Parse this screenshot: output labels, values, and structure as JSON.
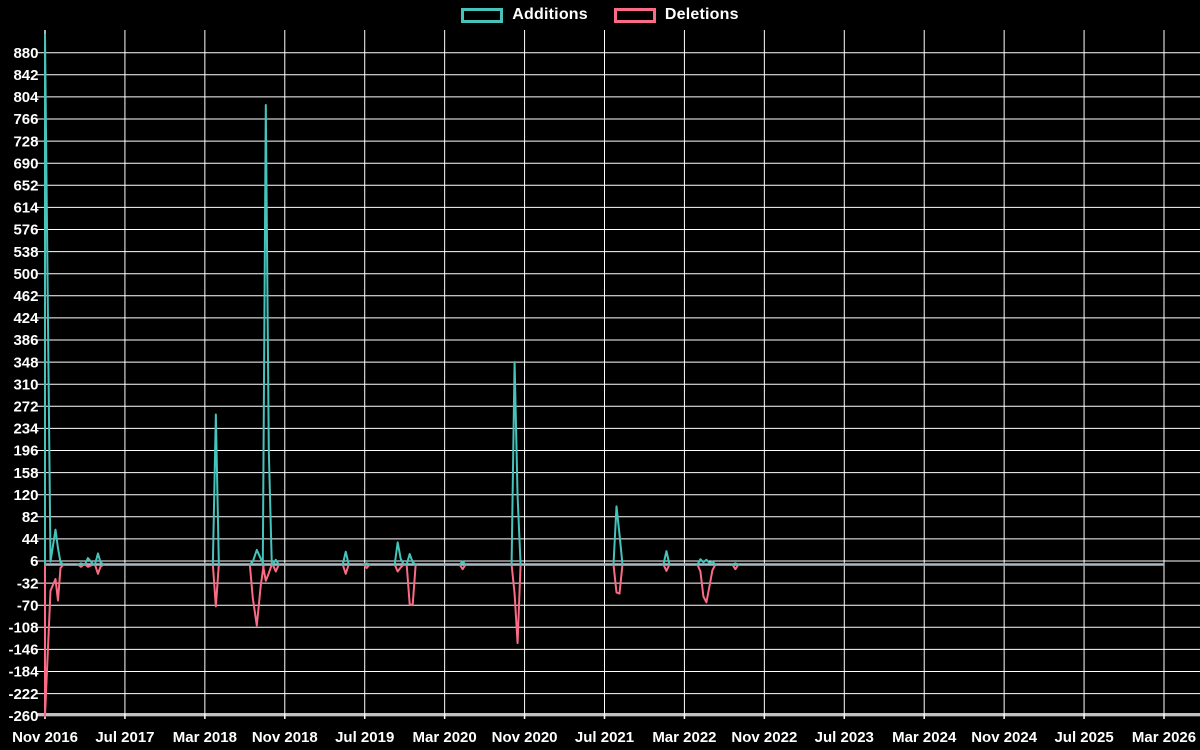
{
  "colors": {
    "background": "#000000",
    "grid": "#ffffff",
    "axis": "#ffffff",
    "text": "#ffffff",
    "additions": "#46c4bc",
    "deletions": "#fa6b85",
    "zero_line": "#a9bac5"
  },
  "chart_data": {
    "type": "line",
    "title": "",
    "legend": [
      "Additions",
      "Deletions"
    ],
    "x_tick_labels": [
      "Nov 2016",
      "Jul 2017",
      "Mar 2018",
      "Nov 2018",
      "Jul 2019",
      "Mar 2020",
      "Nov 2020",
      "Jul 2021",
      "Mar 2022",
      "Nov 2022",
      "Jul 2023",
      "Mar 2024",
      "Nov 2024",
      "Jul 2025",
      "Mar 2026"
    ],
    "months_per_x_tick": 8,
    "x_total_months": 112,
    "y_ticks": [
      880,
      842,
      804,
      766,
      728,
      690,
      652,
      614,
      576,
      538,
      500,
      462,
      424,
      386,
      348,
      310,
      272,
      234,
      196,
      158,
      120,
      82,
      44,
      6,
      -32,
      -70,
      -108,
      -146,
      -184,
      -222,
      -260
    ],
    "y_step": 38,
    "ylim": [
      -260,
      880
    ],
    "baseline_value": 0,
    "grid": true,
    "legend_position": "top-center",
    "point_format": "[months_since_Nov_2016, additions, deletions]",
    "note": "weekly additions/deletions; values estimated from plot; first week clipped beyond axis range; line flat at 0 elsewhere through Mar 2026",
    "clusters": [
      {
        "label": "2016-11",
        "points": [
          [
            0,
            950,
            -310
          ],
          [
            0.55,
            5,
            -45
          ],
          [
            1.05,
            60,
            -25
          ],
          [
            1.3,
            28,
            -62
          ],
          [
            1.55,
            4,
            -6
          ]
        ]
      },
      {
        "label": "2017-02",
        "points": [
          [
            3.6,
            2,
            -4
          ]
        ]
      },
      {
        "label": "2017-03",
        "points": [
          [
            4.3,
            11,
            -4
          ],
          [
            4.55,
            6,
            -2
          ]
        ]
      },
      {
        "label": "2017-04",
        "points": [
          [
            5.3,
            19,
            -16
          ],
          [
            5.55,
            4,
            -4
          ]
        ]
      },
      {
        "label": "2018-04",
        "points": [
          [
            17.1,
            258,
            -72
          ]
        ]
      },
      {
        "label": "2018-08",
        "points": [
          [
            20.8,
            5,
            -58
          ],
          [
            21.2,
            25,
            -105
          ],
          [
            21.6,
            10,
            -35
          ]
        ]
      },
      {
        "label": "2018-09",
        "points": [
          [
            22.1,
            790,
            -28
          ],
          [
            22.4,
            195,
            -15
          ]
        ]
      },
      {
        "label": "2018-10",
        "points": [
          [
            23.1,
            8,
            -12
          ]
        ]
      },
      {
        "label": "2019-05",
        "points": [
          [
            30.1,
            22,
            -16
          ]
        ]
      },
      {
        "label": "2019-07",
        "points": [
          [
            32.2,
            2,
            -6
          ]
        ]
      },
      {
        "label": "2019-10",
        "points": [
          [
            35.3,
            38,
            -12
          ],
          [
            35.6,
            10,
            -5
          ]
        ]
      },
      {
        "label": "2019-12",
        "points": [
          [
            36.5,
            18,
            -68
          ],
          [
            36.8,
            4,
            -70
          ]
        ]
      },
      {
        "label": "2020-04",
        "points": [
          [
            41.8,
            5,
            -8
          ]
        ]
      },
      {
        "label": "2020-10",
        "points": [
          [
            47.0,
            348,
            -50
          ],
          [
            47.3,
            118,
            -135
          ]
        ]
      },
      {
        "label": "2021-08",
        "points": [
          [
            57.2,
            100,
            -48
          ],
          [
            57.5,
            52,
            -50
          ]
        ]
      },
      {
        "label": "2022-01",
        "points": [
          [
            62.2,
            23,
            -11
          ]
        ]
      },
      {
        "label": "2022-05",
        "points": [
          [
            65.6,
            9,
            -12
          ],
          [
            65.9,
            4,
            -55
          ],
          [
            66.2,
            8,
            -65
          ],
          [
            66.5,
            3,
            -38
          ],
          [
            66.8,
            5,
            -10
          ]
        ]
      },
      {
        "label": "2022-08",
        "points": [
          [
            69.1,
            2,
            -8
          ]
        ]
      }
    ]
  }
}
